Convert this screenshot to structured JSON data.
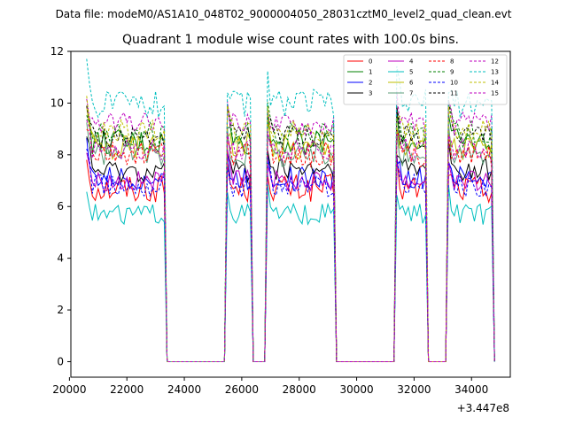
{
  "chart_data": {
    "type": "line",
    "suptitle": "Data file: modeM0/AS1A10_048T02_9000004050_28031cztM0_level2_quad_clean.evt",
    "title": "Quadrant 1 module wise count rates with 100.0s bins.",
    "xlabel": "",
    "ylabel": "",
    "x_offset_label": "+3.447e8",
    "xlim": [
      20050,
      35350
    ],
    "ylim": [
      -0.6,
      12.0
    ],
    "xticks": [
      20000,
      22000,
      24000,
      26000,
      28000,
      30000,
      32000,
      34000
    ],
    "yticks": [
      0,
      2,
      4,
      6,
      8,
      10,
      12
    ],
    "legend_position": "top-right",
    "legend_columns": 4,
    "segments": [
      [
        20600,
        23300
      ],
      [
        25450,
        26350
      ],
      [
        26850,
        29250
      ],
      [
        31350,
        32450
      ],
      [
        33150,
        34750
      ]
    ],
    "series": [
      {
        "name": "0",
        "color": "#ff0000",
        "dash": false,
        "level": 6.7,
        "spread": 0.55
      },
      {
        "name": "1",
        "color": "#008000",
        "dash": false,
        "level": 8.5,
        "spread": 0.5
      },
      {
        "name": "2",
        "color": "#0000ff",
        "dash": false,
        "level": 7.1,
        "spread": 0.45
      },
      {
        "name": "3",
        "color": "#000000",
        "dash": false,
        "level": 7.4,
        "spread": 0.45
      },
      {
        "name": "4",
        "color": "#bf00bf",
        "dash": false,
        "level": 7.0,
        "spread": 0.4
      },
      {
        "name": "5",
        "color": "#00bfbf",
        "dash": false,
        "level": 5.7,
        "spread": 0.4
      },
      {
        "name": "6",
        "color": "#bfbf00",
        "dash": false,
        "level": 8.3,
        "spread": 0.55
      },
      {
        "name": "7",
        "color": "#5f9e7a",
        "dash": false,
        "level": 8.0,
        "spread": 0.45
      },
      {
        "name": "8",
        "color": "#ff0000",
        "dash": true,
        "level": 8.0,
        "spread": 0.5
      },
      {
        "name": "9",
        "color": "#008000",
        "dash": true,
        "level": 8.8,
        "spread": 0.5
      },
      {
        "name": "10",
        "color": "#0000ff",
        "dash": true,
        "level": 6.8,
        "spread": 0.45
      },
      {
        "name": "11",
        "color": "#000000",
        "dash": true,
        "level": 8.7,
        "spread": 0.45
      },
      {
        "name": "12",
        "color": "#bf00bf",
        "dash": true,
        "level": 9.2,
        "spread": 0.45
      },
      {
        "name": "13",
        "color": "#00bfbf",
        "dash": true,
        "level": 10.0,
        "spread": 0.55
      },
      {
        "name": "14",
        "color": "#bfbf00",
        "dash": true,
        "level": 8.9,
        "spread": 0.45
      },
      {
        "name": "15",
        "color": "#bf00bf",
        "dash": true,
        "level": 8.2,
        "spread": 0.45
      }
    ]
  }
}
